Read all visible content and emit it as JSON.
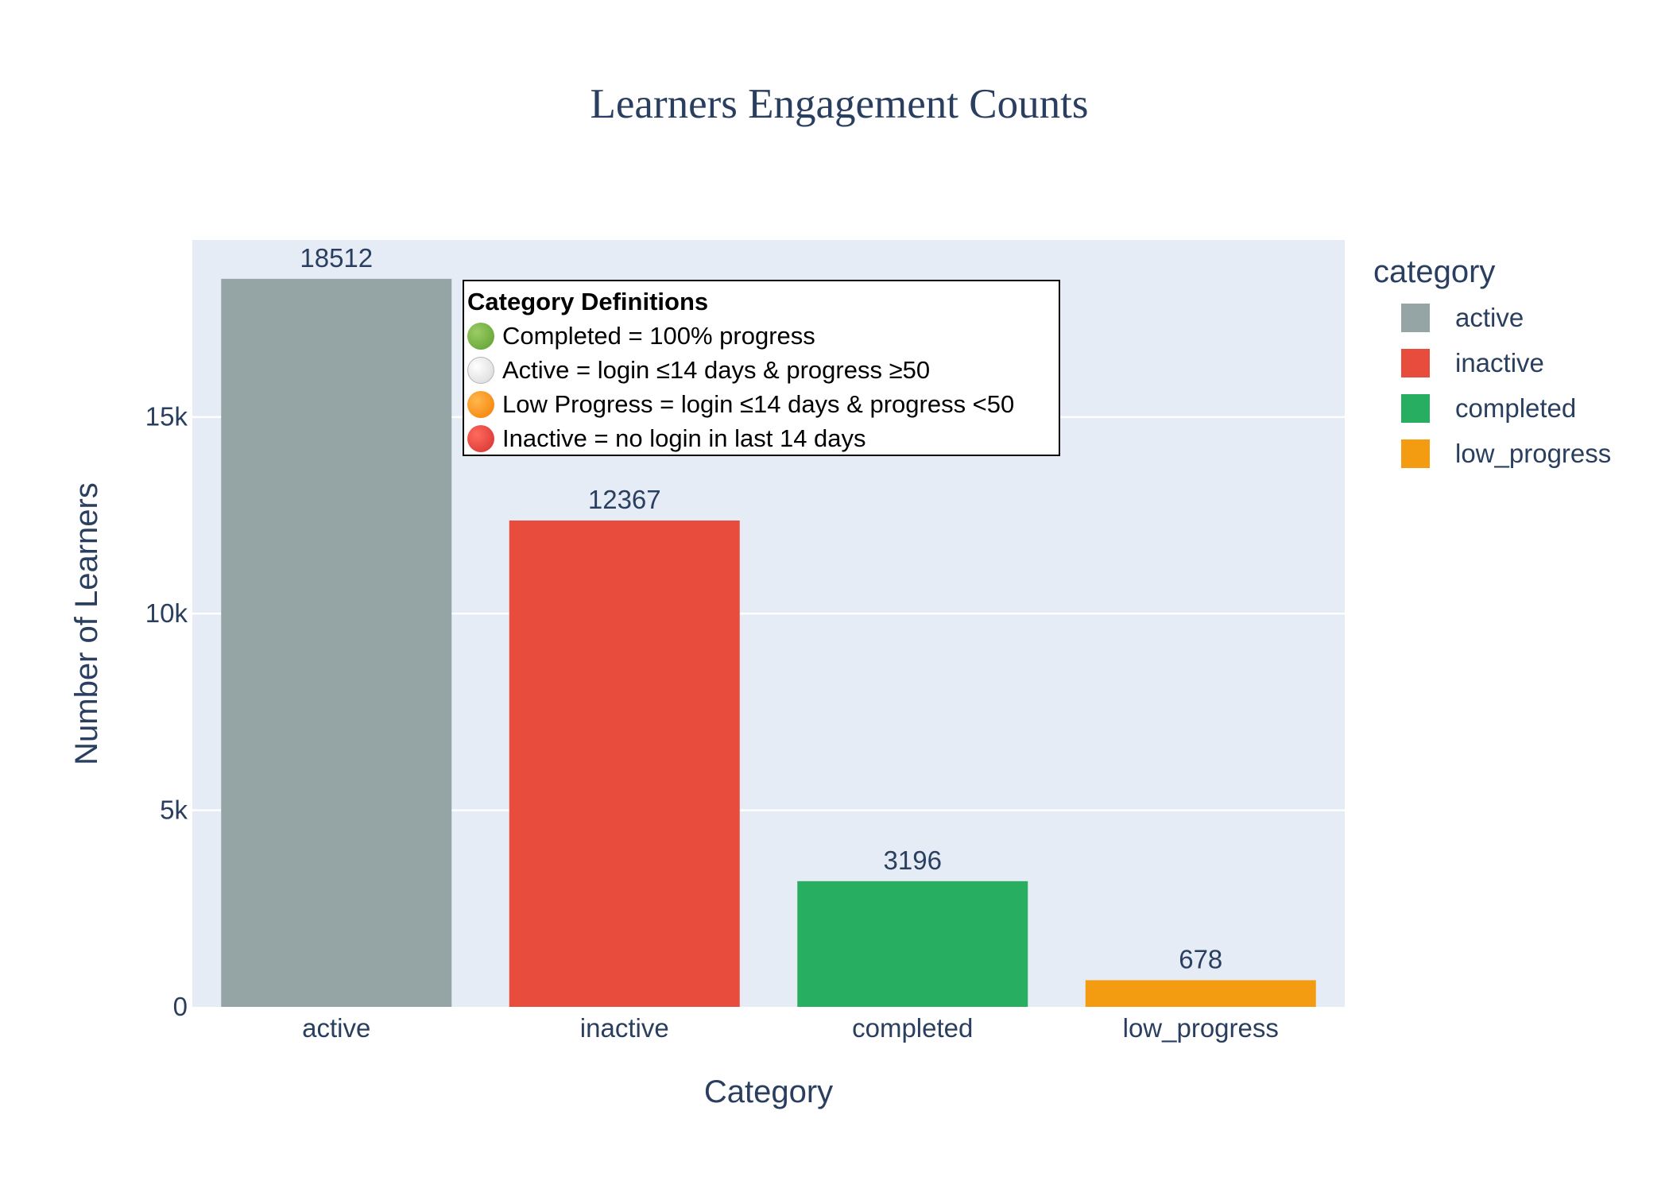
{
  "chart_data": {
    "type": "bar",
    "title": "Learners Engagement Counts",
    "xlabel": "Category",
    "ylabel": "Number of Learners",
    "categories": [
      "active",
      "inactive",
      "completed",
      "low_progress"
    ],
    "values": [
      18512,
      12367,
      3196,
      678
    ],
    "colors": [
      "#95a5a6",
      "#e74c3c",
      "#27ae60",
      "#f39c12"
    ],
    "data_labels": [
      "18512",
      "12367",
      "3196",
      "678"
    ],
    "ylim": [
      0,
      19500
    ],
    "y_ticks": [
      0,
      5000,
      10000,
      15000
    ],
    "y_tick_labels": [
      "0",
      "5k",
      "10k",
      "15k"
    ],
    "grid": true,
    "plot_bgcolor": "#e5ecf6",
    "legend": {
      "title": "category",
      "placement": "right",
      "entries": [
        "active",
        "inactive",
        "completed",
        "low_progress"
      ]
    }
  },
  "annotation": {
    "title": "Category Definitions",
    "lines": [
      {
        "icon": "green-circle-icon",
        "text": "Completed = 100% progress"
      },
      {
        "icon": "white-circle-icon",
        "text": "Active = login ≤14 days & progress ≥50"
      },
      {
        "icon": "orange-circle-icon",
        "text": "Low Progress = login ≤14 days & progress <50"
      },
      {
        "icon": "red-circle-icon",
        "text": "Inactive = no login in last 14 days"
      }
    ]
  }
}
